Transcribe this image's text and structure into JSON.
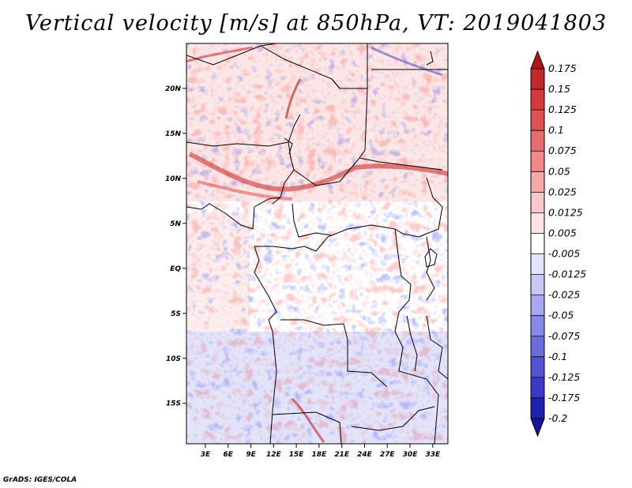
{
  "title": "Vertical velocity [m/s] at 850hPa, VT: 2019041803",
  "credit": "GrADS: IGES/COLA",
  "map": {
    "lat_labels": [
      "20N",
      "15N",
      "10N",
      "5N",
      "EQ",
      "5S",
      "10S",
      "15S"
    ],
    "lat_values": [
      20,
      15,
      10,
      5,
      0,
      -5,
      -10,
      -15
    ],
    "lon_labels": [
      "3E",
      "6E",
      "9E",
      "12E",
      "15E",
      "18E",
      "21E",
      "24E",
      "27E",
      "30E",
      "33E"
    ],
    "lon_values": [
      3,
      6,
      9,
      12,
      15,
      18,
      21,
      24,
      27,
      30,
      33
    ],
    "lon_range": [
      0.5,
      35
    ],
    "lat_range": [
      -19.5,
      25
    ]
  },
  "colorbar": {
    "labels": [
      "0.175",
      "0.15",
      "0.125",
      "0.1",
      "0.075",
      "0.05",
      "0.025",
      "0.0125",
      "0.005",
      "-0.005",
      "-0.0125",
      "-0.025",
      "-0.05",
      "-0.075",
      "-0.1",
      "-0.125",
      "-0.175",
      "-0.2"
    ],
    "colors": [
      "#b01818",
      "#c32828",
      "#d43a3a",
      "#e05252",
      "#e86c6c",
      "#ef8888",
      "#f5a8a8",
      "#fac8c8",
      "#fde4e4",
      "#ffffff",
      "#e4e4fd",
      "#c8c8f8",
      "#a8a8f2",
      "#8888ea",
      "#6c6ce0",
      "#5252d4",
      "#3a3ac8",
      "#2020b0",
      "#1414a0"
    ]
  }
}
